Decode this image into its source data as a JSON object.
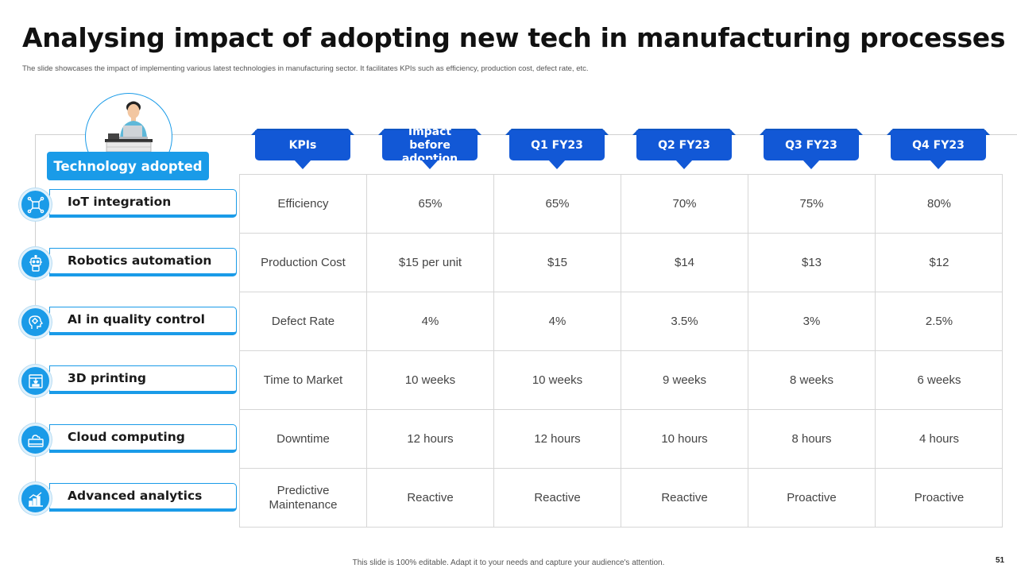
{
  "title": "Analysing impact of adopting new tech in manufacturing processes",
  "subtitle": "The slide showcases the impact of implementing  various latest technologies in manufacturing sector. It  facilitates KPIs such as efficiency, production cost, defect rate, etc.",
  "tech_section": {
    "header": "Technology adopted",
    "items": [
      {
        "label": "IoT integration",
        "icon": "iot-icon"
      },
      {
        "label": "Robotics automation",
        "icon": "robot-icon"
      },
      {
        "label": "AI in quality control",
        "icon": "ai-head-icon"
      },
      {
        "label": "3D printing",
        "icon": "printer-3d-icon"
      },
      {
        "label": "Cloud computing",
        "icon": "cloud-icon"
      },
      {
        "label": "Advanced analytics",
        "icon": "analytics-icon"
      }
    ]
  },
  "table": {
    "headers": [
      "KPIs",
      "Impact before adoption",
      "Q1 FY23",
      "Q2 FY23",
      "Q3 FY23",
      "Q4 FY23"
    ],
    "rows": [
      [
        "Efficiency",
        "65%",
        "65%",
        "70%",
        "75%",
        "80%"
      ],
      [
        "Production Cost",
        "$15 per unit",
        "$15",
        "$14",
        "$13",
        "$12"
      ],
      [
        "Defect Rate",
        "4%",
        "4%",
        "3.5%",
        "3%",
        "2.5%"
      ],
      [
        "Time to Market",
        "10 weeks",
        "10 weeks",
        "9 weeks",
        "8 weeks",
        "6 weeks"
      ],
      [
        "Downtime",
        "12 hours",
        "12 hours",
        "10 hours",
        "8 hours",
        "4 hours"
      ],
      [
        "Predictive Maintenance",
        "Reactive",
        "Reactive",
        "Reactive",
        "Proactive",
        "Proactive"
      ]
    ]
  },
  "footer": "This slide is 100% editable.  Adapt it to your needs and capture your audience's attention.",
  "page_number": "51",
  "colors": {
    "accent_light": "#1a9be8",
    "accent_dark": "#1258d6"
  }
}
